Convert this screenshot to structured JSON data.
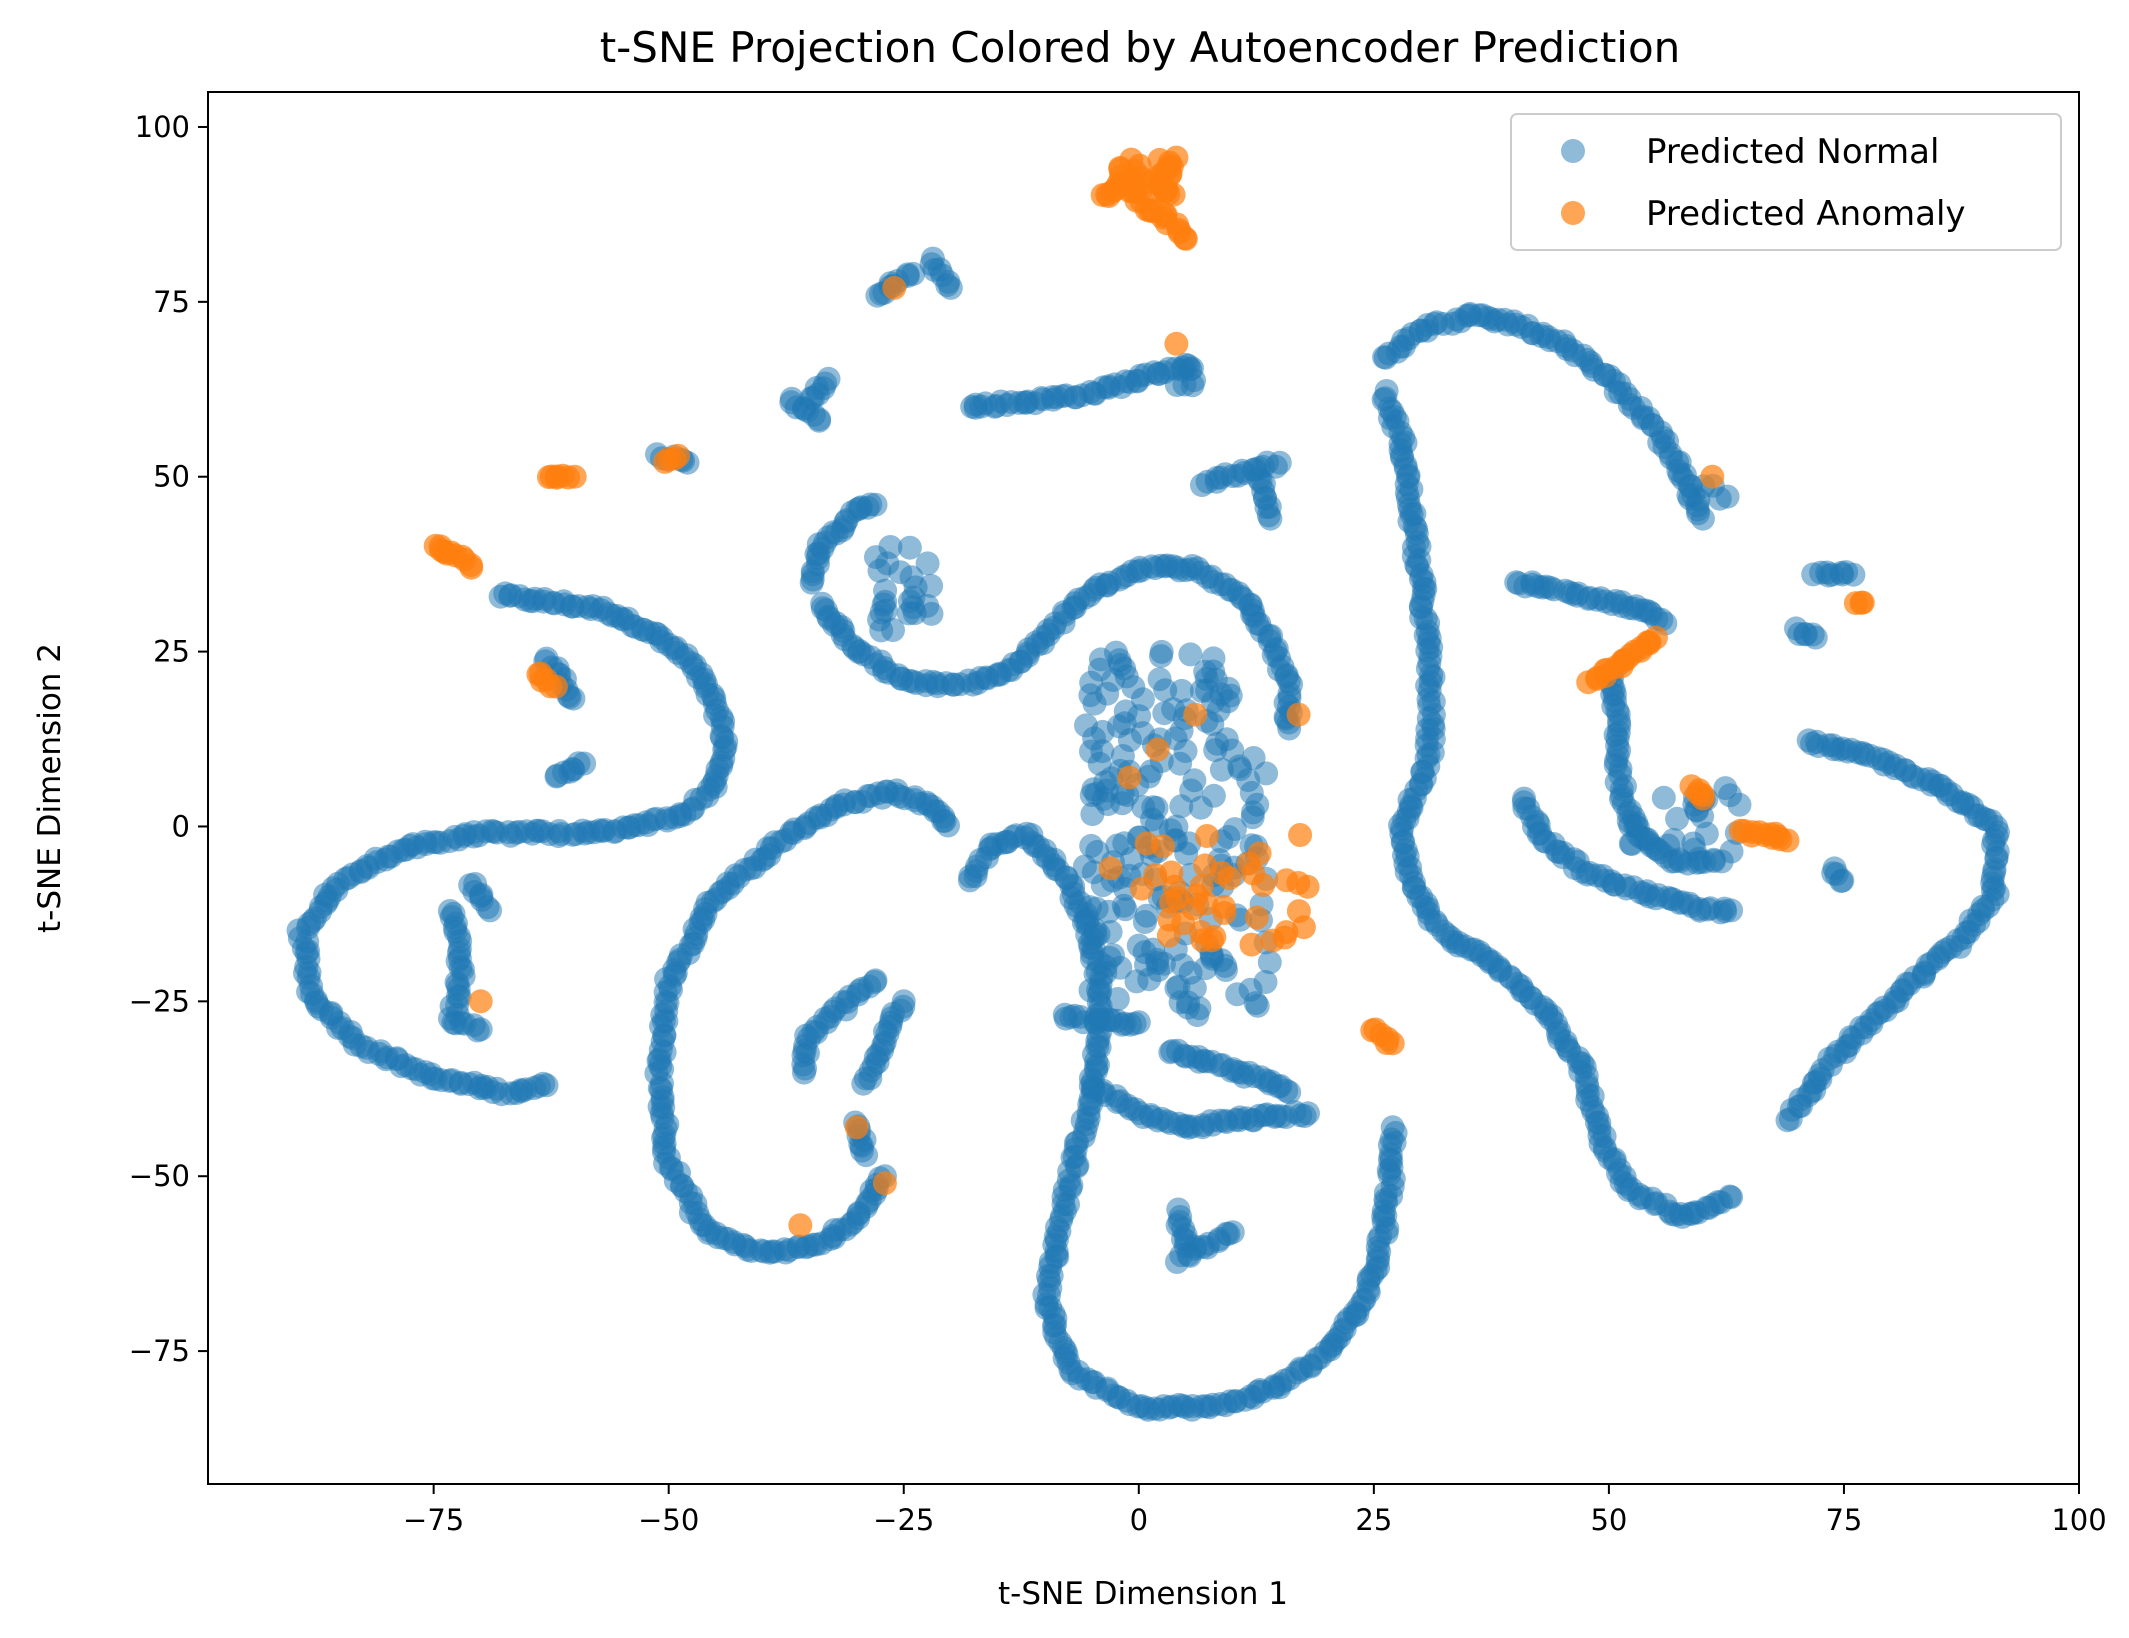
{
  "chart_data": {
    "type": "scatter",
    "title": "t-SNE Projection Colored by Autoencoder Prediction",
    "xlabel": "t-SNE Dimension 1",
    "ylabel": "t-SNE Dimension 2",
    "xlim": [
      -99,
      100
    ],
    "ylim": [
      -94,
      105
    ],
    "xticks": [
      -75,
      -50,
      -25,
      0,
      25,
      50,
      75,
      100
    ],
    "yticks": [
      -75,
      -50,
      -25,
      0,
      25,
      50,
      75,
      100
    ],
    "xtick_labels": [
      "−75",
      "−50",
      "−25",
      "0",
      "25",
      "50",
      "75",
      "100"
    ],
    "ytick_labels": [
      "−75",
      "−50",
      "−25",
      "0",
      "25",
      "50",
      "75",
      "100"
    ],
    "grid": false,
    "legend_position": "top-right",
    "series": [
      {
        "name": "Predicted Normal",
        "color": "#1f77b4",
        "paths": [
          [
            [
              -68,
              33
            ],
            [
              -62,
              32
            ],
            [
              -57,
              31
            ],
            [
              -52,
              28
            ],
            [
              -48,
              24
            ],
            [
              -45,
              18
            ],
            [
              -44,
              12
            ],
            [
              -45,
              6
            ],
            [
              -48,
              2
            ],
            [
              -53,
              0
            ],
            [
              -60,
              -1
            ],
            [
              -70,
              -1
            ],
            [
              -78,
              -3
            ],
            [
              -85,
              -8
            ],
            [
              -89,
              -15
            ],
            [
              -88,
              -24
            ],
            [
              -83,
              -31
            ],
            [
              -75,
              -36
            ],
            [
              -67,
              -38
            ],
            [
              -63,
              -37
            ]
          ],
          [
            [
              -35,
              35
            ],
            [
              -34,
              40
            ],
            [
              -30,
              45
            ],
            [
              -28,
              46
            ]
          ],
          [
            [
              -34,
              32
            ],
            [
              -30,
              25
            ],
            [
              -25,
              21
            ],
            [
              -20,
              20
            ],
            [
              -14,
              22
            ],
            [
              -10,
              27
            ],
            [
              -6,
              33
            ],
            [
              0,
              37
            ],
            [
              6,
              37
            ],
            [
              11,
              33
            ],
            [
              14,
              27
            ],
            [
              16,
              20
            ],
            [
              16,
              14
            ]
          ],
          [
            [
              -18,
              60
            ],
            [
              -10,
              61
            ],
            [
              -5,
              62
            ],
            [
              0,
              64
            ],
            [
              5,
              66
            ]
          ],
          [
            [
              -8,
              -27
            ],
            [
              -4,
              -28
            ],
            [
              0,
              -28
            ]
          ],
          [
            [
              3,
              -32
            ],
            [
              8,
              -34
            ],
            [
              13,
              -36
            ],
            [
              16,
              -38
            ]
          ],
          [
            [
              -5,
              -37
            ],
            [
              0,
              -41
            ],
            [
              5,
              -43
            ],
            [
              10,
              -42
            ],
            [
              18,
              -41
            ]
          ],
          [
            [
              -18,
              -8
            ],
            [
              -16,
              -3
            ],
            [
              -12,
              -1
            ],
            [
              -8,
              -7
            ],
            [
              -5,
              -15
            ],
            [
              -4,
              -25
            ],
            [
              -5,
              -38
            ],
            [
              -8,
              -55
            ],
            [
              -10,
              -68
            ],
            [
              -7,
              -78
            ],
            [
              0,
              -83
            ],
            [
              8,
              -83
            ],
            [
              15,
              -80
            ],
            [
              20,
              -75
            ],
            [
              24,
              -68
            ],
            [
              26,
              -58
            ],
            [
              27,
              -48
            ],
            [
              27,
              -43
            ]
          ],
          [
            [
              -20,
              0
            ],
            [
              -22,
              3
            ],
            [
              -26,
              5
            ],
            [
              -32,
              3
            ],
            [
              -38,
              -2
            ],
            [
              -45,
              -10
            ],
            [
              -50,
              -22
            ],
            [
              -51,
              -35
            ],
            [
              -50,
              -48
            ],
            [
              -46,
              -58
            ],
            [
              -40,
              -61
            ],
            [
              -34,
              -60
            ],
            [
              -30,
              -56
            ],
            [
              -27,
              -50
            ]
          ],
          [
            [
              -36,
              -35
            ],
            [
              -35,
              -30
            ],
            [
              -30,
              -24
            ],
            [
              -28,
              -22
            ]
          ],
          [
            [
              -29,
              -37
            ],
            [
              -27,
              -30
            ],
            [
              -25,
              -25
            ]
          ],
          [
            [
              -30,
              -42
            ],
            [
              -29,
              -47
            ]
          ],
          [
            [
              26,
              67
            ],
            [
              30,
              71
            ],
            [
              35,
              73
            ],
            [
              40,
              72
            ],
            [
              45,
              69
            ],
            [
              50,
              64
            ],
            [
              55,
              57
            ],
            [
              58,
              50
            ],
            [
              60,
              44
            ]
          ],
          [
            [
              26,
              62
            ],
            [
              28,
              55
            ],
            [
              29,
              45
            ],
            [
              30,
              35
            ],
            [
              31,
              22
            ],
            [
              31,
              10
            ],
            [
              28,
              0
            ],
            [
              29,
              -8
            ],
            [
              32,
              -15
            ],
            [
              38,
              -20
            ],
            [
              43,
              -26
            ],
            [
              47,
              -34
            ],
            [
              49,
              -44
            ],
            [
              52,
              -52
            ],
            [
              58,
              -56
            ],
            [
              63,
              -53
            ]
          ],
          [
            [
              40,
              35
            ],
            [
              47,
              33
            ],
            [
              54,
              31
            ],
            [
              56,
              29
            ]
          ],
          [
            [
              41,
              4
            ],
            [
              43,
              -2
            ],
            [
              48,
              -7
            ],
            [
              55,
              -10
            ],
            [
              60,
              -12
            ],
            [
              63,
              -12
            ]
          ],
          [
            [
              50,
              22
            ],
            [
              51,
              15
            ],
            [
              51,
              8
            ],
            [
              52,
              2
            ],
            [
              54,
              -2
            ],
            [
              57,
              -5
            ],
            [
              62,
              -5
            ]
          ],
          [
            [
              71,
              12
            ],
            [
              78,
              10
            ],
            [
              85,
              6
            ],
            [
              91,
              0
            ],
            [
              91,
              -10
            ],
            [
              87,
              -17
            ],
            [
              80,
              -25
            ],
            [
              74,
              -33
            ],
            [
              69,
              -42
            ]
          ],
          [
            [
              72,
              36
            ],
            [
              76,
              36
            ]
          ],
          [
            [
              70,
              28
            ],
            [
              72,
              27
            ]
          ],
          [
            [
              7,
              49
            ],
            [
              12,
              51
            ],
            [
              15,
              52
            ]
          ],
          [
            [
              13,
              50
            ],
            [
              14,
              44
            ]
          ],
          [
            [
              -73,
              -12
            ],
            [
              -72,
              -20
            ],
            [
              -73,
              -28
            ],
            [
              -70,
              -29
            ]
          ],
          [
            [
              -71,
              -8
            ],
            [
              -69,
              -12
            ]
          ],
          [
            [
              -60,
              18
            ],
            [
              -63,
              24
            ]
          ],
          [
            [
              -62,
              7
            ],
            [
              -59,
              9
            ]
          ],
          [
            [
              -37,
              61
            ],
            [
              -34,
              58
            ]
          ],
          [
            [
              -35,
              61
            ],
            [
              -33,
              64
            ]
          ],
          [
            [
              -28,
              76
            ],
            [
              -24,
              79
            ]
          ],
          [
            [
              -22,
              81
            ],
            [
              -20,
              77
            ]
          ],
          [
            [
              -51,
              53
            ],
            [
              -48,
              52
            ]
          ],
          [
            [
              4,
              -55
            ],
            [
              5,
              -60
            ]
          ],
          [
            [
              4,
              -62
            ],
            [
              10,
              -58
            ]
          ],
          [
            [
              75,
              -8
            ],
            [
              74,
              -6
            ]
          ]
        ],
        "clusters": [
          {
            "x": [
              -6,
              10
            ],
            "y": [
              10,
              25
            ],
            "n": 60
          },
          {
            "x": [
              -6,
              14
            ],
            "y": [
              -27,
              10
            ],
            "n": 150
          },
          {
            "x": [
              -28,
              -22
            ],
            "y": [
              28,
              40
            ],
            "n": 25
          },
          {
            "x": [
              4,
              6
            ],
            "y": [
              63,
              66
            ],
            "n": 8
          },
          {
            "x": [
              52,
              64
            ],
            "y": [
              -4,
              6
            ],
            "n": 25
          },
          {
            "x": [
              58,
              64
            ],
            "y": [
              46,
              50
            ],
            "n": 5
          }
        ]
      },
      {
        "name": "Predicted Anomaly",
        "color": "#ff7f0e",
        "paths": [
          [
            [
              -75,
              40
            ],
            [
              -73,
              39
            ],
            [
              -71,
              37
            ]
          ],
          [
            [
              -63,
              50
            ],
            [
              -60,
              50
            ]
          ],
          [
            [
              -50,
              52
            ],
            [
              -49,
              53
            ]
          ],
          [
            [
              -64,
              22
            ],
            [
              -62,
              20
            ]
          ],
          [
            [
              -4,
              90
            ],
            [
              -1,
              92
            ],
            [
              1,
              88
            ],
            [
              3,
              87
            ],
            [
              5,
              84
            ]
          ],
          [
            [
              25,
              -29
            ],
            [
              27,
              -31
            ]
          ],
          [
            [
              48,
              21
            ],
            [
              51,
              23
            ],
            [
              54,
              26
            ],
            [
              55,
              27
            ]
          ],
          [
            [
              59,
              6
            ],
            [
              60,
              4
            ]
          ],
          [
            [
              64,
              -1
            ],
            [
              67,
              -1
            ],
            [
              69,
              -2
            ]
          ],
          [
            [
              76,
              32
            ],
            [
              77,
              32
            ]
          ]
        ],
        "points": [
          [
            -26,
            77
          ],
          [
            4,
            69
          ],
          [
            -70,
            -25
          ],
          [
            -30,
            -43
          ],
          [
            -27,
            -51
          ],
          [
            -36,
            -57
          ],
          [
            6,
            16
          ],
          [
            17,
            16
          ],
          [
            2,
            11
          ],
          [
            -1,
            7
          ],
          [
            -3,
            -6
          ],
          [
            61,
            50
          ]
        ],
        "clusters": [
          {
            "x": [
              -2,
              4
            ],
            "y": [
              90,
              96
            ],
            "n": 30
          },
          {
            "x": [
              0,
              18
            ],
            "y": [
              -17,
              -1
            ],
            "n": 40
          }
        ]
      }
    ]
  }
}
